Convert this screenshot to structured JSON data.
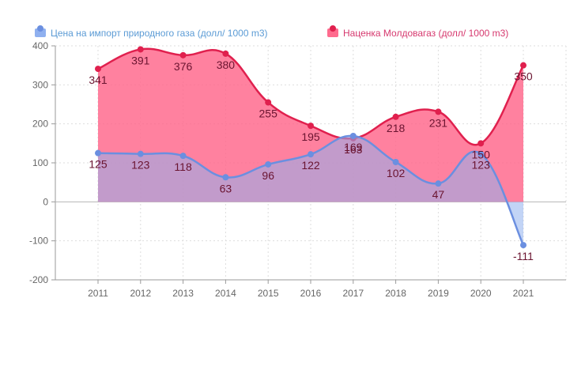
{
  "chart_data": {
    "type": "area",
    "title": "",
    "xlabel": "",
    "ylabel": "",
    "categories": [
      "2011",
      "2012",
      "2013",
      "2014",
      "2015",
      "2016",
      "2017",
      "2018",
      "2019",
      "2020",
      "2021"
    ],
    "ylim": [
      -200,
      400
    ],
    "yticks": [
      400,
      300,
      200,
      100,
      0,
      -100,
      -200
    ],
    "grid": true,
    "legend_position": "top",
    "series": [
      {
        "name": "Цена на импорт природного газа (долл/ 1000 m3)",
        "values": [
          125,
          123,
          118,
          63,
          96,
          122,
          169,
          102,
          47,
          123,
          -111
        ],
        "line_color": "#6b8fe0",
        "fill_color": "#8fb0ef",
        "label_color": "#5b9bd5"
      },
      {
        "name": "Наценка Молдовагаз (долл/ 1000 m3)",
        "values": [
          341,
          391,
          376,
          380,
          255,
          195,
          163,
          218,
          231,
          150,
          350
        ],
        "line_color": "#e0204e",
        "fill_color": "#ff6b8e",
        "label_color": "#d6386e"
      }
    ]
  }
}
